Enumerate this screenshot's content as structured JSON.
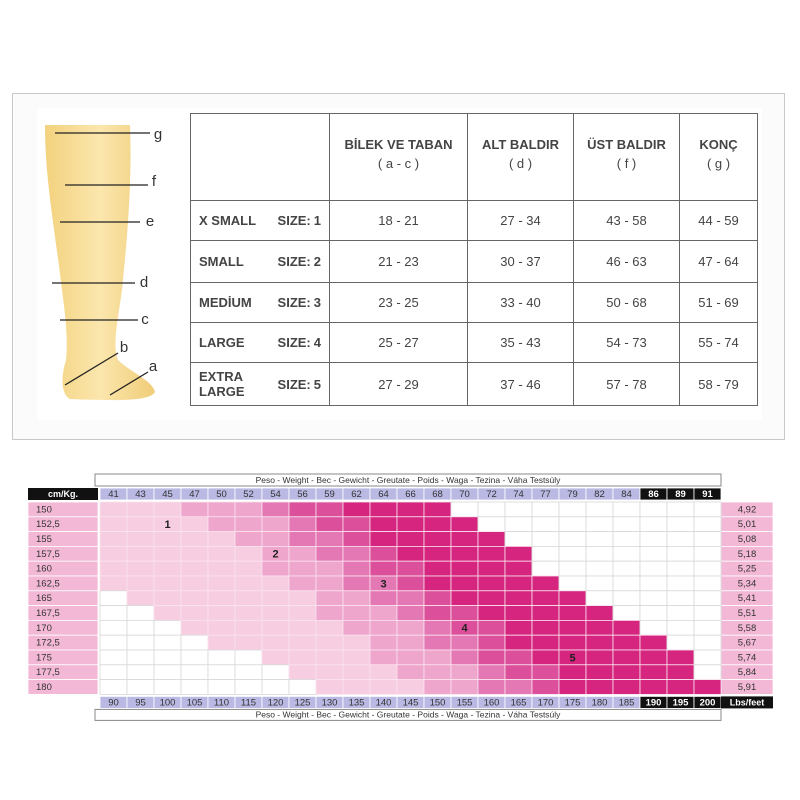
{
  "leg_labels": [
    "g",
    "f",
    "e",
    "d",
    "c",
    "b",
    "a"
  ],
  "table": {
    "columns": [
      {
        "name": "BİLEK VE TABAN",
        "sub": "( a - c )"
      },
      {
        "name": "ALT BALDIR",
        "sub": "( d )"
      },
      {
        "name": "ÜST BALDIR",
        "sub": "( f )"
      },
      {
        "name": "KONÇ",
        "sub": "( g )"
      }
    ],
    "size_prefix": "SIZE:",
    "rows": [
      {
        "name": "X SMALL",
        "size": "1",
        "cells": [
          "18 - 21",
          "27 - 34",
          "43 - 58",
          "44 - 59"
        ]
      },
      {
        "name": "SMALL",
        "size": "2",
        "cells": [
          "21 - 23",
          "30 - 37",
          "46 - 63",
          "47 - 64"
        ]
      },
      {
        "name": "MEDİUM",
        "size": "3",
        "cells": [
          "23 - 25",
          "33 - 40",
          "50 - 68",
          "51 - 69"
        ]
      },
      {
        "name": "LARGE",
        "size": "4",
        "cells": [
          "25 - 27",
          "35 - 43",
          "54 - 73",
          "55 - 74"
        ]
      },
      {
        "name": "EXTRA LARGE",
        "size": "5",
        "cells": [
          "27 - 29",
          "37 - 46",
          "57 - 78",
          "58 - 79"
        ]
      }
    ]
  },
  "size_chart": {
    "caption": "Peso - Weight - Bec - Gewicht - Greutate - Poids - Waga - Tezina - Váha Testsúly",
    "corner_left": "cm/Kg.",
    "corner_right": "Lbs/feet",
    "kg": [
      "41",
      "43",
      "45",
      "47",
      "50",
      "52",
      "54",
      "56",
      "59",
      "62",
      "64",
      "66",
      "68",
      "70",
      "72",
      "74",
      "77",
      "79",
      "82",
      "84",
      "86",
      "89",
      "91"
    ],
    "lbs": [
      "90",
      "95",
      "100",
      "105",
      "110",
      "115",
      "120",
      "125",
      "130",
      "135",
      "140",
      "145",
      "150",
      "155",
      "160",
      "165",
      "170",
      "175",
      "180",
      "185",
      "190",
      "195",
      "200"
    ],
    "cm": [
      "150",
      "152,5",
      "155",
      "157,5",
      "160",
      "162,5",
      "165",
      "167,5",
      "170",
      "172,5",
      "175",
      "177,5",
      "180"
    ],
    "feet": [
      "4,92",
      "5,01",
      "5,08",
      "5,18",
      "5,25",
      "5,34",
      "5,41",
      "5,51",
      "5,58",
      "5,67",
      "5,74",
      "5,84",
      "5,91"
    ],
    "zones": [
      "1",
      "2",
      "3",
      "4",
      "5"
    ]
  }
}
